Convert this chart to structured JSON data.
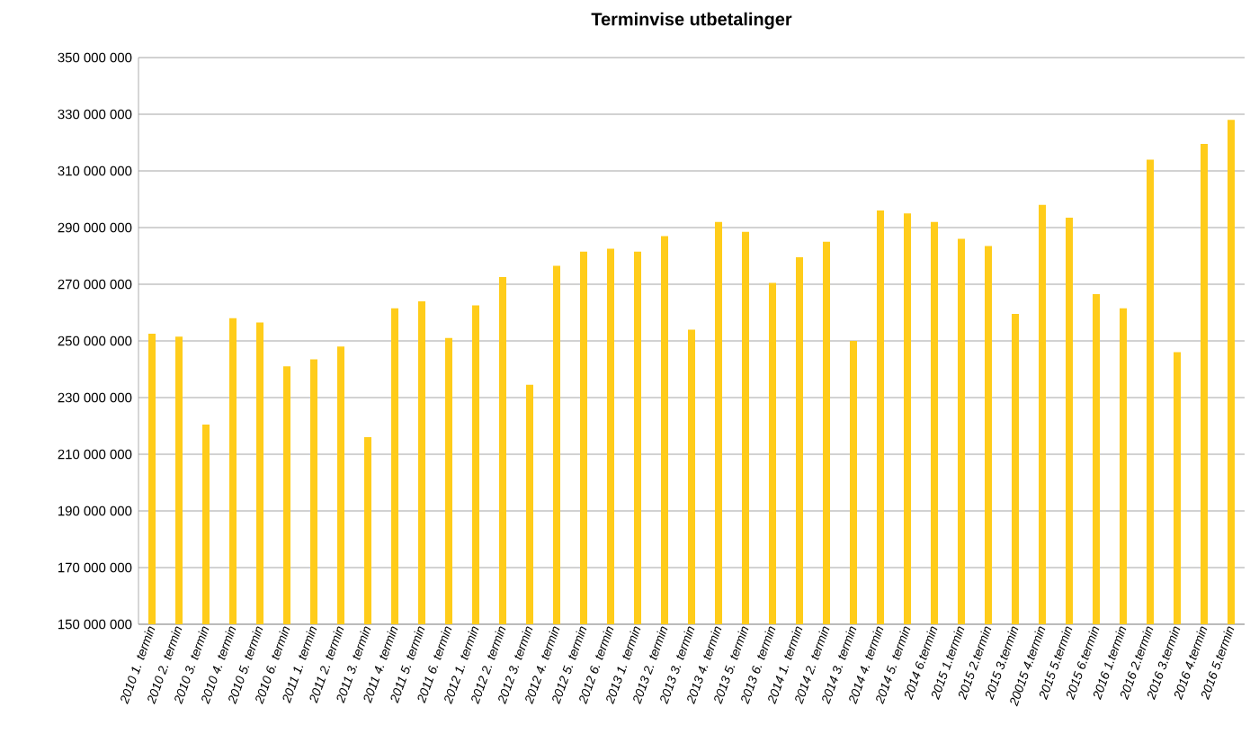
{
  "chart_data": {
    "type": "bar",
    "title": "Terminvise utbetalinger",
    "categories": [
      "2010 1. termin",
      "2010 2. termin",
      "2010 3. termin",
      "2010 4. termin",
      "2010 5. termin",
      "2010 6. termin",
      "2011 1. termin",
      "2011 2. termin",
      "2011 3. termin",
      "2011 4. termin",
      "2011 5. termin",
      "2011 6. termin",
      "2012 1. termin",
      "2012 2. termin",
      "2012 3. termin",
      "2012 4. termin",
      "2012 5. termin",
      "2012 6. termin",
      "2013 1. termin",
      "2013 2. termin",
      "2013 3. termin",
      "2013 4. termin",
      "2013 5. termin",
      "2013 6. termin",
      "2014 1. termin",
      "2014 2. termin",
      "2014 3. termin",
      "2014 4. termin",
      "2014 5. termin",
      "2014 6.termin",
      "2015 1.termin",
      "2015 2.termin",
      "2015 3.termin",
      "20015 4.termin",
      "2015 5.termin",
      "2015 6.termin",
      "2016 1.termin",
      "2016 2.termin",
      "2016 3.termin",
      "2016 4.termin",
      "2016 5.termin"
    ],
    "values": [
      252500000,
      251500000,
      220500000,
      258000000,
      256500000,
      241000000,
      243500000,
      248000000,
      216000000,
      261500000,
      264000000,
      251000000,
      262500000,
      272500000,
      234500000,
      276500000,
      281500000,
      282500000,
      281500000,
      287000000,
      254000000,
      292000000,
      288500000,
      270500000,
      279500000,
      285000000,
      250000000,
      296000000,
      295000000,
      292000000,
      286000000,
      283500000,
      259500000,
      298000000,
      293500000,
      266500000,
      261500000,
      314000000,
      246000000,
      319500000,
      328000000
    ],
    "color": "#ffcc1a",
    "ylim": [
      150000000,
      350000000
    ],
    "yticks": [
      {
        "value": 150000000,
        "label": "150 000 000"
      },
      {
        "value": 170000000,
        "label": "170 000 000"
      },
      {
        "value": 190000000,
        "label": "190 000 000"
      },
      {
        "value": 210000000,
        "label": "210 000 000"
      },
      {
        "value": 230000000,
        "label": "230 000 000"
      },
      {
        "value": 250000000,
        "label": "250 000 000"
      },
      {
        "value": 270000000,
        "label": "270 000 000"
      },
      {
        "value": 290000000,
        "label": "290 000 000"
      },
      {
        "value": 310000000,
        "label": "310 000 000"
      },
      {
        "value": 330000000,
        "label": "330 000 000"
      },
      {
        "value": 350000000,
        "label": "350 000 000"
      }
    ],
    "grid": "y"
  }
}
